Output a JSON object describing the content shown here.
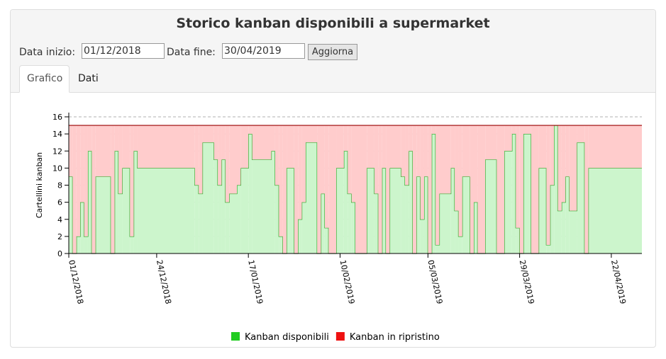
{
  "header": {
    "title": "Storico kanban disponibili a supermarket"
  },
  "form": {
    "start_label": "Data inizio:",
    "start_value": "01/12/2018",
    "end_label": "Data fine:",
    "end_value": "30/04/2019",
    "button": "Aggiorna"
  },
  "tabs": [
    "Grafico",
    "Dati"
  ],
  "chart_data": {
    "type": "area",
    "stacked": true,
    "step": true,
    "y_label": "Cartellini kanban",
    "x": [
      "01/12/2018",
      "02/12/2018",
      "03/12/2018",
      "04/12/2018",
      "05/12/2018",
      "06/12/2018",
      "07/12/2018",
      "08/12/2018",
      "12/12/2018",
      "13/12/2018",
      "14/12/2018",
      "15/12/2018",
      "17/12/2018",
      "18/12/2018",
      "19/12/2018",
      "03/01/2019",
      "04/01/2019",
      "05/01/2019",
      "08/01/2019",
      "09/01/2019",
      "10/01/2019",
      "11/01/2019",
      "12/01/2019",
      "14/01/2019",
      "15/01/2019",
      "17/01/2019",
      "18/01/2019",
      "23/01/2019",
      "24/01/2019",
      "25/01/2019",
      "26/01/2019",
      "27/01/2019",
      "29/01/2019",
      "30/01/2019",
      "31/01/2019",
      "01/02/2019",
      "04/02/2019",
      "05/02/2019",
      "06/02/2019",
      "07/02/2019",
      "09/02/2019",
      "11/02/2019",
      "12/02/2019",
      "13/02/2019",
      "14/02/2019",
      "17/02/2019",
      "19/02/2019",
      "20/02/2019",
      "21/02/2019",
      "22/02/2019",
      "23/02/2019",
      "26/02/2019",
      "27/02/2019",
      "28/02/2019",
      "01/03/2019",
      "02/03/2019",
      "03/03/2019",
      "04/03/2019",
      "05/03/2019",
      "06/03/2019",
      "07/03/2019",
      "08/03/2019",
      "11/03/2019",
      "12/03/2019",
      "13/03/2019",
      "14/03/2019",
      "16/03/2019",
      "17/03/2019",
      "18/03/2019",
      "20/03/2019",
      "23/03/2019",
      "25/03/2019",
      "27/03/2019",
      "28/03/2019",
      "29/03/2019",
      "30/03/2019",
      "01/04/2019",
      "03/04/2019",
      "05/04/2019",
      "06/04/2019",
      "07/04/2019",
      "08/04/2019",
      "09/04/2019",
      "10/04/2019",
      "11/04/2019",
      "13/04/2019",
      "15/04/2019",
      "16/04/2019"
    ],
    "series": [
      {
        "name": "Kanban disponibili",
        "color": "#22cc22",
        "fill": "#ccf5cc",
        "line": "#22aa22",
        "values": [
          9,
          0,
          2,
          6,
          2,
          12,
          0,
          9,
          0,
          12,
          7,
          10,
          2,
          12,
          10,
          8,
          7,
          13,
          11,
          8,
          11,
          6,
          7,
          8,
          10,
          14,
          11,
          12,
          8,
          2,
          0,
          10,
          0,
          4,
          6,
          13,
          0,
          7,
          3,
          0,
          10,
          12,
          7,
          6,
          0,
          10,
          7,
          0,
          10,
          0,
          10,
          9,
          8,
          12,
          0,
          9,
          4,
          9,
          0,
          14,
          1,
          7,
          10,
          5,
          2,
          9,
          0,
          6,
          0,
          11,
          0,
          12,
          14,
          3,
          0,
          14,
          0,
          10,
          1,
          8,
          15,
          5,
          6,
          9,
          5,
          13,
          0,
          10
        ]
      },
      {
        "name": "Kanban in ripristino",
        "color": "#ee1111",
        "fill": "#ffcccc",
        "line": "#990000",
        "values": [
          6,
          15,
          13,
          9,
          13,
          3,
          15,
          6,
          15,
          3,
          8,
          5,
          13,
          3,
          5,
          7,
          8,
          2,
          4,
          7,
          4,
          9,
          8,
          7,
          5,
          1,
          4,
          3,
          7,
          13,
          15,
          5,
          15,
          11,
          9,
          2,
          15,
          8,
          12,
          15,
          5,
          3,
          8,
          9,
          15,
          5,
          8,
          15,
          5,
          15,
          5,
          6,
          7,
          3,
          15,
          6,
          11,
          6,
          15,
          1,
          14,
          8,
          5,
          10,
          13,
          6,
          15,
          9,
          15,
          4,
          15,
          3,
          1,
          12,
          15,
          1,
          15,
          5,
          14,
          7,
          0,
          10,
          9,
          6,
          10,
          2,
          15,
          5
        ]
      }
    ],
    "xlim": [
      "01/12/2018",
      "30/04/2019"
    ],
    "xticks": [
      "01/12/2018",
      "24/12/2018",
      "17/01/2019",
      "10/02/2019",
      "05/03/2019",
      "29/03/2019",
      "22/04/2019"
    ],
    "ylim": [
      0,
      16
    ],
    "yticks": [
      0,
      2,
      4,
      6,
      8,
      10,
      12,
      14,
      16
    ],
    "grid": true,
    "legend": "bottom"
  }
}
